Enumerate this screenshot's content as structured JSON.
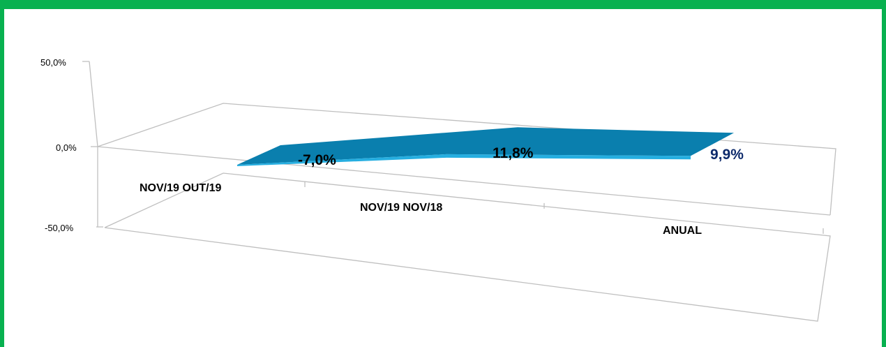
{
  "chart_data": {
    "type": "area",
    "view": "3d",
    "categories": [
      "NOV/19 OUT/19",
      "NOV/19 NOV/18",
      "ANUAL"
    ],
    "values": [
      -7.0,
      11.8,
      9.9
    ],
    "data_labels": [
      "-7,0%",
      "11,8%",
      "9,9%"
    ],
    "y_ticks": [
      "50,0%",
      "0,0%",
      "-50,0%"
    ],
    "ylim": [
      -50,
      50
    ],
    "title": "",
    "xlabel": "",
    "ylabel": "",
    "legend": "none",
    "gridlines": true
  },
  "colors": {
    "frame": "#08b150",
    "series_top": "#0a7fae",
    "series_front": "#26aee0",
    "label_dark": "#000000",
    "label_accent": "#0d2a6b",
    "walls": "#bfbfbf"
  }
}
